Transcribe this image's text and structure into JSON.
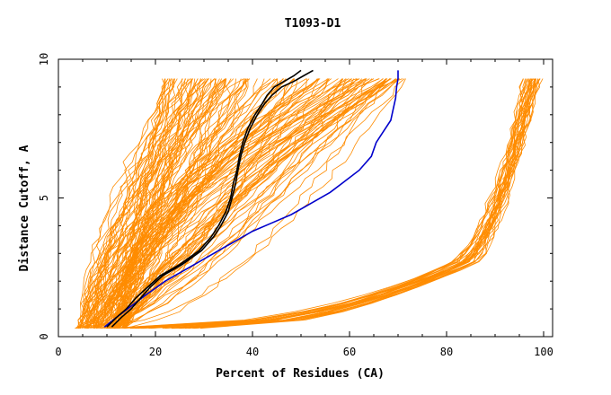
{
  "chart_data": {
    "type": "line",
    "title": "T1093-D1",
    "xlabel": "Percent of Residues (CA)",
    "ylabel": "Distance Cutoff, A",
    "xlim": [
      0,
      100
    ],
    "ylim": [
      0,
      10
    ],
    "x_ticks": [
      "0",
      "20",
      "40",
      "60",
      "80",
      "100"
    ],
    "y_ticks": [
      "0",
      "5",
      "10"
    ],
    "grid": false,
    "legend": "none",
    "colors": {
      "background_models": "#ff8c00",
      "highlight_dark": "#000000",
      "highlight_blue": "#0000cc"
    },
    "series": [
      {
        "color": "#0000cc",
        "x": [
          9.5,
          12,
          15,
          18,
          22,
          27,
          31,
          34,
          37,
          40,
          44,
          48,
          52,
          56,
          59,
          62,
          64.5,
          65.5,
          67,
          68.5,
          69,
          69.5,
          69.7,
          70,
          70
        ],
        "y": [
          0.35,
          0.7,
          1.1,
          1.5,
          2.0,
          2.5,
          2.9,
          3.2,
          3.5,
          3.8,
          4.1,
          4.4,
          4.8,
          5.2,
          5.6,
          6.0,
          6.5,
          7.0,
          7.4,
          7.8,
          8.2,
          8.6,
          9.0,
          9.3,
          9.6
        ]
      },
      {
        "color": "#000000",
        "x": [
          10,
          12,
          14,
          16,
          18.5,
          21,
          25,
          29,
          31.5,
          33,
          34.5,
          35.5,
          36,
          36.8,
          37.3,
          38,
          39,
          40.5,
          42,
          43,
          44.5,
          46.5,
          48.5,
          50
        ],
        "y": [
          0.35,
          0.7,
          1.0,
          1.4,
          1.8,
          2.2,
          2.6,
          3.1,
          3.6,
          4.0,
          4.5,
          5.0,
          5.5,
          6.0,
          6.5,
          7.0,
          7.5,
          8.0,
          8.4,
          8.7,
          9.0,
          9.2,
          9.4,
          9.6
        ]
      },
      {
        "color": "#000000",
        "x": [
          11,
          13,
          15,
          17,
          19,
          21.5,
          25.5,
          29.5,
          32,
          33.5,
          35,
          35.8,
          36.5,
          37,
          37.6,
          38.4,
          39.5,
          41,
          42.5,
          44,
          46,
          48.5,
          50.5,
          52.5
        ],
        "y": [
          0.35,
          0.7,
          1.0,
          1.4,
          1.8,
          2.2,
          2.6,
          3.1,
          3.6,
          4.0,
          4.5,
          5.0,
          5.5,
          6.0,
          6.5,
          7.0,
          7.5,
          8.0,
          8.4,
          8.7,
          9.0,
          9.2,
          9.4,
          9.6
        ]
      }
    ]
  }
}
